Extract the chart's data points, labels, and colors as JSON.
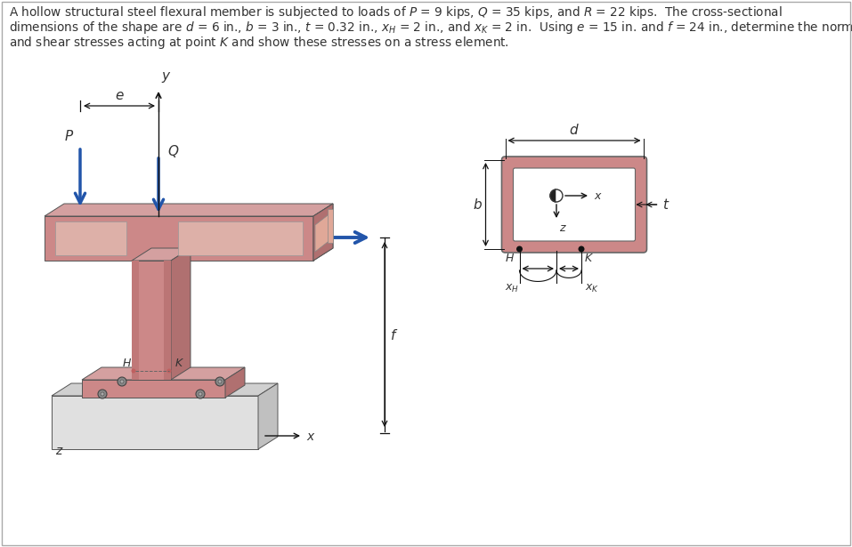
{
  "bg_color": "#ffffff",
  "steel_fill": "#cc8888",
  "steel_top": "#d4a0a0",
  "steel_side": "#b07070",
  "steel_inner": "#ddb0a8",
  "base_fill": "#e0e0e0",
  "base_top": "#d0d0d0",
  "base_side": "#c0c0c0",
  "plate_fill": "#cc9090",
  "plate_top": "#d4a0a0",
  "arrow_blue": "#2255aa",
  "line_color": "#111111",
  "text_color": "#333333",
  "bolt_color": "#888888"
}
